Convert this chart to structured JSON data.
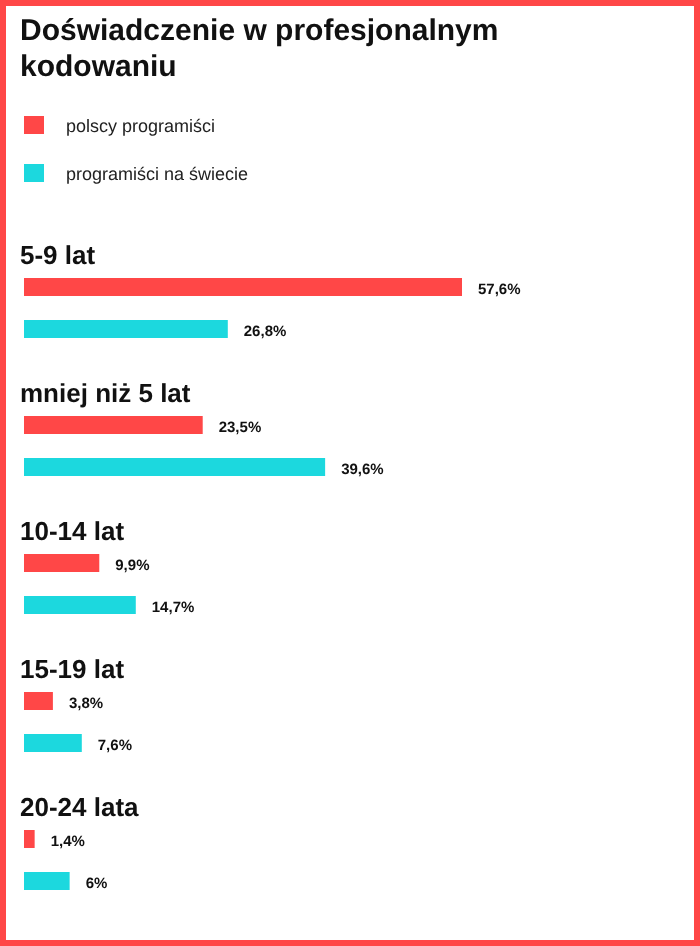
{
  "chart_data": {
    "type": "bar",
    "orientation": "horizontal",
    "title": "Doświadczenie w profesjonalnym kodowaniu",
    "categories": [
      "5-9 lat",
      "mniej niż 5 lat",
      "10-14 lat",
      "15-19 lat",
      "20-24 lata"
    ],
    "series": [
      {
        "name": "polscy programiści",
        "color": "#ff4747",
        "values": [
          57.6,
          23.5,
          9.9,
          3.8,
          1.4
        ],
        "value_labels": [
          "57,6%",
          "23,5%",
          "9,9%",
          "3,8%",
          "1,4%"
        ]
      },
      {
        "name": "programiści na świecie",
        "color": "#1cd8de",
        "values": [
          26.8,
          39.6,
          14.7,
          7.6,
          6
        ],
        "value_labels": [
          "26,8%",
          "39,6%",
          "14,7%",
          "7,6%",
          "6%"
        ]
      }
    ],
    "legend": "top left",
    "grid": false
  }
}
